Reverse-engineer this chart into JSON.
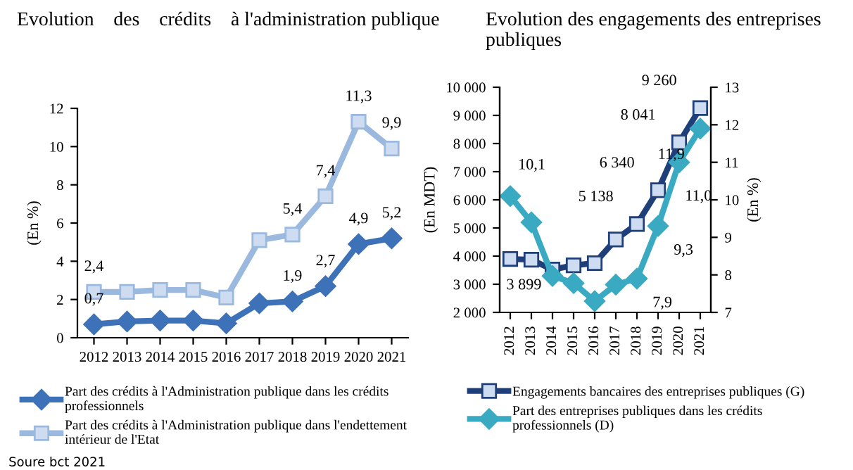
{
  "chart_data": [
    {
      "type": "line",
      "title": "Evolution    des    crédits    à l'administration publique",
      "ylabel": "(En %)",
      "categories": [
        "2012",
        "2013",
        "2014",
        "2015",
        "2016",
        "2017",
        "2018",
        "2019",
        "2020",
        "2021"
      ],
      "ylim": [
        0,
        12
      ],
      "yticks": [
        0,
        2,
        4,
        6,
        8,
        10,
        12
      ],
      "grid": false,
      "legend": "bottom",
      "series": [
        {
          "name": "Part des crédits à l'Administration publique dans les crédits\nprofessionnels",
          "color": "#3d72b8",
          "marker": "diamond",
          "values": [
            0.7,
            0.85,
            0.9,
            0.9,
            0.75,
            1.8,
            1.9,
            2.7,
            4.9,
            5.2
          ],
          "value_labels": [
            "0,7",
            null,
            null,
            null,
            null,
            null,
            "1,9",
            "2,7",
            "4,9",
            "5,2"
          ]
        },
        {
          "name": "Part des crédits à l'Administration publique dans l'endettement\nintérieur de l'Etat",
          "color": "#9bb9df",
          "marker": "square",
          "values": [
            2.4,
            2.4,
            2.5,
            2.5,
            2.1,
            5.1,
            5.4,
            7.4,
            11.3,
            9.9
          ],
          "value_labels": [
            "2,4",
            null,
            null,
            null,
            null,
            null,
            "5,4",
            "7,4",
            "11,3",
            "9,9"
          ]
        }
      ],
      "annotations": [
        "Soure bct 2021"
      ]
    },
    {
      "type": "line",
      "title": "Evolution des engagements des entreprises publiques",
      "ylabel": "(En MDT)",
      "y2label": "(En %)",
      "categories": [
        "2012",
        "2013",
        "2014",
        "2015",
        "2016",
        "2017",
        "2018",
        "2019",
        "2020",
        "2021"
      ],
      "ylim": [
        2000,
        10000
      ],
      "yticks": [
        {
          "value": 2000,
          "label": "2 000"
        },
        {
          "value": 3000,
          "label": "3 000"
        },
        {
          "value": 4000,
          "label": "4 000"
        },
        {
          "value": 5000,
          "label": "5 000"
        },
        {
          "value": 6000,
          "label": "6 000"
        },
        {
          "value": 7000,
          "label": "7 000"
        },
        {
          "value": 8000,
          "label": "8 000"
        },
        {
          "value": 9000,
          "label": "9 000"
        },
        {
          "value": 10000,
          "label": "10 000"
        }
      ],
      "y2lim": [
        7,
        13
      ],
      "y2ticks": [
        7,
        8,
        9,
        10,
        11,
        12,
        13
      ],
      "grid": false,
      "legend": "bottom",
      "series": [
        {
          "name": "Engagements bancaires des entreprises publiques (G)",
          "color": "#1f3f7a",
          "marker": "square",
          "values": [
            3899,
            3870,
            3520,
            3670,
            3750,
            4590,
            5138,
            6340,
            8041,
            9260
          ],
          "value_labels": [
            "3 899",
            null,
            null,
            null,
            null,
            null,
            "5 138",
            "6 340",
            "8 041",
            "9 260"
          ]
        },
        {
          "name": "Part des entreprises publiques dans les crédits\nprofessionnels (D)",
          "color": "#3aaac2",
          "marker": "diamond",
          "axis": "y2",
          "values": [
            10.1,
            9.4,
            7.97,
            7.78,
            7.3,
            7.74,
            7.9,
            9.3,
            11.0,
            11.9
          ],
          "value_labels": [
            "10,1",
            null,
            null,
            null,
            null,
            null,
            "7,9",
            "9,3",
            "11,0",
            "11,9"
          ]
        }
      ]
    }
  ]
}
